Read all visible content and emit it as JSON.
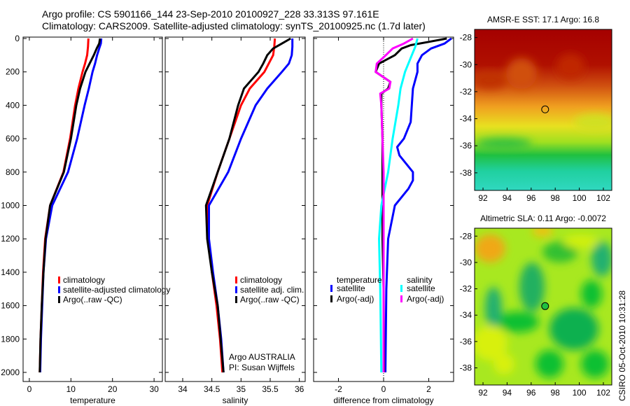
{
  "title": {
    "line1": "Argo profile: CS 5901166_144 23-Sep-2010 20100927_228 33.313S 97.161E",
    "line2": "Climatology: CARS2009. Satellite-adjusted climatology: synTS_20100925.nc (1.7d later)"
  },
  "side_label": "CSIRO 05-Oct-2010 10:31:28",
  "colors": {
    "climatology": "#ff0000",
    "satellite": "#0000ff",
    "argo": "#000000",
    "sal_satellite": "#00ffff",
    "sal_argo": "#ff00ff"
  },
  "chart_data": [
    {
      "type": "line",
      "xlabel": "temperature",
      "ylabel": "",
      "xlim": [
        -1.5,
        32
      ],
      "ylim": [
        2050,
        0
      ],
      "xticks": [
        "0",
        "10",
        "20",
        "30"
      ],
      "xtickvals": [
        0,
        10,
        20,
        30
      ],
      "yticks": [
        "0",
        "200",
        "400",
        "600",
        "800",
        "1000",
        "1200",
        "1400",
        "1600",
        "1800",
        "2000"
      ],
      "legend": [
        "climatology",
        "satellite-adjusted climatology",
        "Argo(..raw -QC)"
      ],
      "series": [
        {
          "name": "climatology",
          "color": "#ff0000",
          "depth": [
            0,
            50,
            100,
            150,
            200,
            300,
            400,
            600,
            800,
            1000,
            1200,
            1400,
            1600,
            1800,
            2000
          ],
          "values": [
            14.2,
            14.1,
            13.9,
            13.4,
            12.8,
            11.8,
            11,
            9.8,
            8.2,
            5,
            3.8,
            3.3,
            3,
            2.7,
            2.5
          ]
        },
        {
          "name": "satellite-adjusted climatology",
          "color": "#0000ff",
          "depth": [
            0,
            30,
            60,
            100,
            150,
            200,
            300,
            400,
            600,
            800,
            1000,
            1200,
            1400,
            1600,
            1800,
            2000
          ],
          "values": [
            17.3,
            17.2,
            16.8,
            16.3,
            15.8,
            15.2,
            14.3,
            13.3,
            11.5,
            9.3,
            5.5,
            4,
            3.4,
            3.1,
            2.8,
            2.6
          ]
        },
        {
          "name": "Argo(..raw -QC)",
          "color": "#000000",
          "depth": [
            0,
            30,
            60,
            100,
            150,
            200,
            300,
            400,
            600,
            800,
            1000,
            1200,
            1400,
            1600,
            1800,
            2000
          ],
          "values": [
            17,
            16.8,
            16.2,
            15.5,
            14.5,
            13.5,
            12.2,
            11.3,
            10,
            8.3,
            5,
            3.9,
            3.4,
            3.0,
            2.7,
            2.5
          ]
        }
      ]
    },
    {
      "type": "line",
      "xlabel": "salinity",
      "xlim": [
        33.7,
        36.1
      ],
      "ylim": [
        2050,
        0
      ],
      "xticks": [
        "34",
        "34.5",
        "35",
        "35.5",
        "36"
      ],
      "xtickvals": [
        34,
        34.5,
        35,
        35.5,
        36
      ],
      "legend": [
        "climatology",
        "satellite adj. clim.",
        "Argo(..raw -QC)"
      ],
      "annotation": [
        "Argo AUSTRALIA",
        "PI: Susan Wijffels"
      ],
      "series": [
        {
          "name": "climatology",
          "color": "#ff0000",
          "depth": [
            0,
            50,
            100,
            200,
            300,
            400,
            600,
            800,
            1000,
            1200,
            1400,
            1600,
            1800,
            2000
          ],
          "values": [
            35.58,
            35.57,
            35.55,
            35.4,
            35.15,
            35.0,
            34.8,
            34.6,
            34.42,
            34.44,
            34.5,
            34.58,
            34.64,
            34.68
          ]
        },
        {
          "name": "satellite adj. clim.",
          "color": "#0000ff",
          "depth": [
            0,
            50,
            100,
            150,
            200,
            300,
            400,
            600,
            800,
            1000,
            1200,
            1400,
            1600,
            1800,
            2000
          ],
          "values": [
            35.88,
            35.88,
            35.87,
            35.82,
            35.7,
            35.45,
            35.25,
            35.0,
            34.78,
            34.45,
            34.45,
            34.52,
            34.6,
            34.66,
            34.7
          ]
        },
        {
          "name": "Argo(..raw -QC)",
          "color": "#000000",
          "depth": [
            0,
            30,
            60,
            100,
            150,
            200,
            300,
            400,
            600,
            800,
            1000,
            1200,
            1400,
            1600,
            1800,
            2000
          ],
          "values": [
            35.85,
            35.7,
            35.55,
            35.45,
            35.38,
            35.3,
            35.05,
            34.95,
            34.8,
            34.6,
            34.4,
            34.42,
            34.5,
            34.6,
            34.65,
            34.7
          ]
        }
      ]
    },
    {
      "type": "line",
      "xlabel": "difference from climatology",
      "xlim": [
        -3.1,
        3.1
      ],
      "ylim": [
        2050,
        0
      ],
      "xticks": [
        "-2",
        "0",
        "2"
      ],
      "xtickvals": [
        -2,
        0,
        2
      ],
      "legend_titles": [
        "temperature",
        "salinity"
      ],
      "legend": [
        "satellite",
        "Argo(-adj)",
        "satellite",
        "Argo(-adj)"
      ],
      "series": [
        {
          "name": "temperature satellite",
          "color": "#0000ff",
          "depth": [
            0,
            30,
            60,
            100,
            150,
            200,
            300,
            400,
            500,
            600,
            650,
            700,
            750,
            800,
            850,
            900,
            950,
            1000,
            1200,
            1500,
            2000
          ],
          "values": [
            3.0,
            2.7,
            2.1,
            1.7,
            1.5,
            1.5,
            1.3,
            1.25,
            1.2,
            0.9,
            0.6,
            0.7,
            1.0,
            1.3,
            1.3,
            1.1,
            0.8,
            0.5,
            0.2,
            0.12,
            0.08
          ]
        },
        {
          "name": "temperature Argo(-adj)",
          "color": "#000000",
          "depth": [
            0,
            20,
            40,
            60,
            100,
            150,
            200,
            260,
            300,
            330,
            400,
            600,
            800,
            1000,
            1200,
            1500,
            2000
          ],
          "values": [
            2.8,
            2.0,
            1.2,
            0.8,
            0.5,
            -0.2,
            -0.35,
            0.3,
            0.2,
            -0.1,
            -0.1,
            -0.05,
            -0.05,
            -0.05,
            -0.05,
            0,
            0.02
          ]
        },
        {
          "name": "salinity satellite",
          "color": "#00ffff",
          "depth": [
            0,
            50,
            100,
            200,
            300,
            400,
            600,
            800,
            1000,
            1200,
            1500,
            2000
          ],
          "values": [
            1.5,
            1.4,
            1.25,
            0.95,
            0.75,
            0.65,
            0.4,
            0.2,
            -0.1,
            -0.2,
            -0.15,
            -0.1
          ]
        },
        {
          "name": "salinity Argo(-adj)",
          "color": "#ff00ff",
          "depth": [
            0,
            30,
            60,
            100,
            150,
            200,
            260,
            300,
            330,
            400,
            600,
            800,
            1000,
            1200,
            1500,
            2000
          ],
          "values": [
            1.3,
            0.9,
            0.4,
            0.1,
            -0.3,
            -0.35,
            0.3,
            0.25,
            -0.15,
            -0.1,
            -0.05,
            0,
            0,
            0,
            0,
            0
          ]
        }
      ]
    },
    {
      "type": "heatmap",
      "title": "AMSR-E SST: 17.1 Argo: 16.8",
      "xticks": [
        "92",
        "94",
        "96",
        "98",
        "100",
        "102"
      ],
      "yticks": [
        "-28",
        "-30",
        "-32",
        "-34",
        "-36",
        "-38"
      ],
      "xlim": [
        91.3,
        102.7
      ],
      "ylim": [
        -39.3,
        -27.4
      ],
      "marker": [
        97.161,
        -33.313
      ]
    },
    {
      "type": "heatmap",
      "title": "Altimetric SLA: 0.11 Argo: -0.0072",
      "xticks": [
        "92",
        "94",
        "96",
        "98",
        "100",
        "102"
      ],
      "yticks": [
        "-28",
        "-30",
        "-32",
        "-34",
        "-36",
        "-38"
      ],
      "xlim": [
        91.3,
        102.7
      ],
      "ylim": [
        -39.3,
        -27.4
      ],
      "marker": [
        97.161,
        -33.313
      ]
    }
  ]
}
